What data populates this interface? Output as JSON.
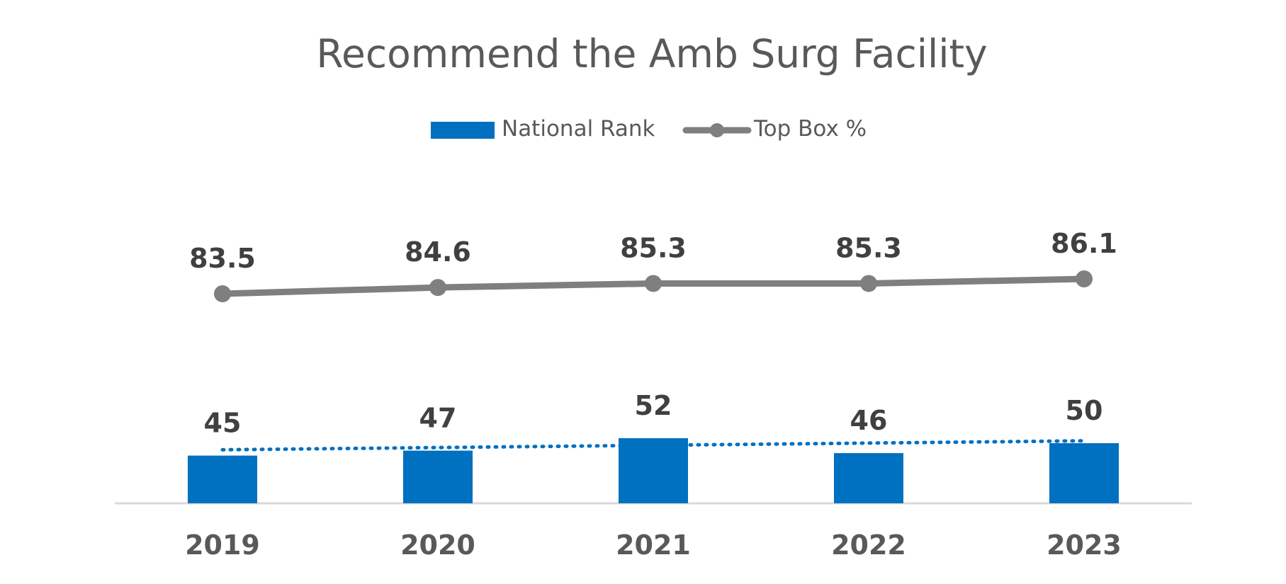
{
  "chart_data": {
    "type": "bar",
    "title": "Recommend the Amb Surg Facility",
    "categories": [
      "2019",
      "2020",
      "2021",
      "2022",
      "2023"
    ],
    "series": [
      {
        "name": "National Rank",
        "type": "bar",
        "values": [
          45,
          47,
          52,
          46,
          50
        ],
        "color": "#0070C0",
        "trendline": "linear-dotted"
      },
      {
        "name": "Top Box %",
        "type": "line",
        "values": [
          83.5,
          84.6,
          85.3,
          85.3,
          86.1
        ],
        "color": "#7F7F7F"
      }
    ],
    "legend": "top-center",
    "grid": false,
    "xlabel": "",
    "ylabel": ""
  }
}
